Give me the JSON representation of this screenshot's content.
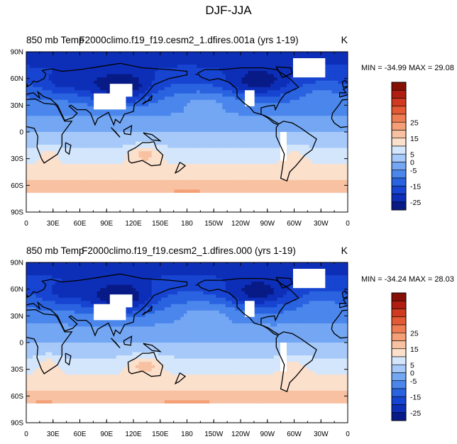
{
  "figure": {
    "title": "DJF-JJA"
  },
  "colors": {
    "levels": [
      -25,
      -20,
      -15,
      -10,
      -5,
      0,
      5,
      10,
      15,
      20,
      25
    ],
    "fills": [
      "#081a86",
      "#0d2fb8",
      "#1744d0",
      "#2a63e0",
      "#4a86ec",
      "#74a7f3",
      "#a6c9f9",
      "#d4e6fb",
      "#fbe0cc",
      "#f8c2a2",
      "#f49f76",
      "#ee7d53",
      "#e35a34",
      "#cf3a20",
      "#b01e12",
      "#861005"
    ],
    "missing": "#ffffff",
    "coast": "#000000"
  },
  "chart_data": [
    {
      "type": "heatmap",
      "title_left": "850 mb Temp",
      "title_center": "F2000climo.f19_f19.cesm2_1.dfires.001a (yrs 1-19)",
      "title_right": "K",
      "stats": "MIN = -34.99 MAX =  29.08",
      "min": -34.99,
      "max": 29.08,
      "xticks": [
        "0",
        "30E",
        "60E",
        "90E",
        "120E",
        "150E",
        "180",
        "150W",
        "120W",
        "90W",
        "60W",
        "30W",
        "0"
      ],
      "yticks": [
        "90N",
        "60N",
        "30N",
        "0",
        "30S",
        "60S",
        "90S"
      ],
      "xlim": [
        0,
        360
      ],
      "ylim": [
        -90,
        90
      ],
      "colorbar_labels": [
        "25",
        "15",
        "5",
        "0",
        "-5",
        "-15",
        "-25"
      ]
    },
    {
      "type": "heatmap",
      "title_left": "850 mb Temp",
      "title_center": "F2000climo.f19_f19.cesm2_1.dfires.000 (yrs 1-19)",
      "title_right": "K",
      "stats": "MIN = -34.24 MAX =  28.03",
      "min": -34.24,
      "max": 28.03,
      "xticks": [
        "0",
        "30E",
        "60E",
        "90E",
        "120E",
        "150E",
        "180",
        "150W",
        "120W",
        "90W",
        "60W",
        "30W",
        "0"
      ],
      "yticks": [
        "90N",
        "60N",
        "30N",
        "0",
        "30S",
        "60S",
        "90S"
      ],
      "xlim": [
        0,
        360
      ],
      "ylim": [
        -90,
        90
      ],
      "colorbar_labels": [
        "25",
        "15",
        "5",
        "0",
        "-5",
        "-15",
        "-25"
      ]
    }
  ]
}
